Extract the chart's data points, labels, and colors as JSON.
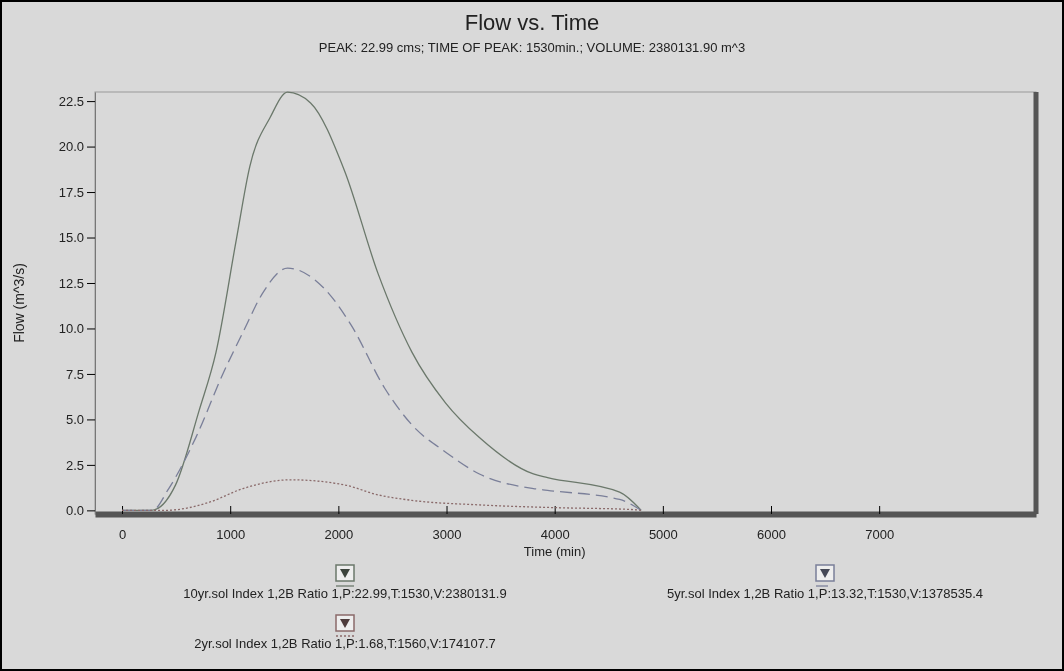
{
  "chart_data": {
    "type": "line",
    "title": "Flow vs. Time",
    "subtitle": "PEAK: 22.99 cms;  TIME OF PEAK: 1530min.;  VOLUME: 2380131.90 m^3",
    "xlabel": "Time (min)",
    "ylabel": "Flow (m^3/s)",
    "xlim": [
      -250,
      8450
    ],
    "ylim": [
      -0.2,
      23
    ],
    "xticks": [
      0,
      1000,
      2000,
      3000,
      4000,
      5000,
      6000,
      7000
    ],
    "yticks": [
      {
        "value": 0,
        "label": "0.0"
      },
      {
        "value": 2.5,
        "label": "2.5"
      },
      {
        "value": 5,
        "label": "5.0"
      },
      {
        "value": 7.5,
        "label": "7.5"
      },
      {
        "value": 10,
        "label": "10.0"
      },
      {
        "value": 12.5,
        "label": "12.5"
      },
      {
        "value": 15,
        "label": "15.0"
      },
      {
        "value": 17.5,
        "label": "17.5"
      },
      {
        "value": 20,
        "label": "20.0"
      },
      {
        "value": 22.5,
        "label": "22.5"
      }
    ],
    "grid": false,
    "legend": "bottom",
    "marker": "none",
    "series": [
      {
        "name": "10yr.sol Index 1,2B Ratio 1,P:22.99,T:1530,V:2380131.9",
        "color": "#6b786b",
        "line_style": "solid",
        "x": [
          0,
          270,
          495,
          713,
          869,
          1057,
          1181,
          1369,
          1530,
          1743,
          2055,
          2368,
          2680,
          2992,
          3304,
          3803,
          3934,
          4600,
          4800
        ],
        "values": [
          0,
          0,
          1.4,
          5.5,
          8.7,
          14.9,
          18.9,
          21.6,
          22.99,
          22.4,
          18.7,
          13.0,
          8.7,
          5.9,
          4.0,
          2.0,
          1.8,
          1.0,
          0
        ]
      },
      {
        "name": "5yr.sol Index 1,2B Ratio 1,P:13.32,T:1530,V:1378535.4",
        "color": "#7a7f99",
        "line_style": "dashed",
        "x": [
          0,
          280,
          432,
          682,
          932,
          1119,
          1306,
          1530,
          1869,
          2117,
          2430,
          2680,
          2992,
          3304,
          3803,
          3934,
          4600,
          4800
        ],
        "values": [
          0,
          0,
          1.2,
          4.0,
          7.5,
          9.8,
          12.0,
          13.32,
          12.2,
          10.2,
          6.7,
          4.7,
          3.2,
          2.0,
          1.2,
          1.1,
          0.6,
          0
        ]
      },
      {
        "name": "2yr.sol Index 1,2B Ratio 1,P:1.68,T:1560,V:174107.7",
        "color": "#8a6a6a",
        "line_style": "dotted",
        "x": [
          0,
          400,
          804,
          1119,
          1560,
          2055,
          2368,
          2680,
          3304,
          4000,
          4700,
          4800
        ],
        "values": [
          0,
          0,
          0.44,
          1.2,
          1.68,
          1.4,
          0.85,
          0.55,
          0.3,
          0.15,
          0.05,
          0
        ]
      }
    ]
  }
}
